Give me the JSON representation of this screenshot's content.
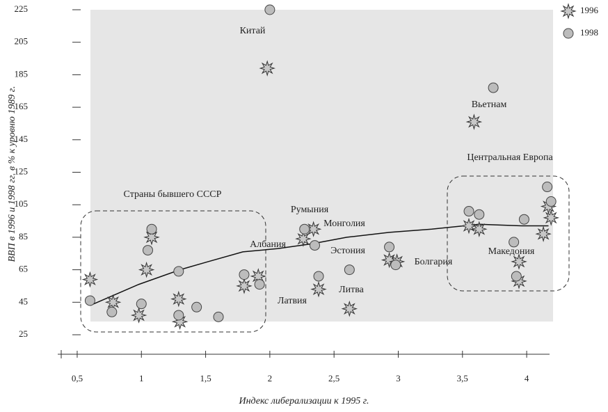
{
  "chart_data": {
    "type": "scatter",
    "ylabel": "ВВП в 1996 и 1998 гг. в % к уровню 1989 г.",
    "xlabel": "Индекс либерализации к 1995 г.",
    "xlim": [
      0.38,
      4.28
    ],
    "ylim": [
      25,
      225
    ],
    "xticks": [
      {
        "value": 0.5,
        "label": "0,5"
      },
      1,
      {
        "value": 1.5,
        "label": "1,5"
      },
      2,
      {
        "value": 2.5,
        "label": "2,5"
      },
      3,
      {
        "value": 3.5,
        "label": "3,5"
      },
      4
    ],
    "yticks": [
      25,
      45,
      65,
      85,
      105,
      125,
      145,
      165,
      185,
      205,
      225
    ],
    "series": [
      {
        "name": "1996",
        "color": "#c8c8c8",
        "marker": "star",
        "x": [
          1.98,
          3.59,
          0.6,
          0.78,
          0.98,
          1.04,
          1.08,
          1.29,
          1.3,
          1.8,
          1.91,
          2.26,
          2.34,
          2.38,
          2.62,
          2.93,
          2.99,
          3.55,
          3.63,
          3.94,
          3.94,
          4.13,
          4.17,
          4.19
        ],
        "values": [
          189,
          156,
          59,
          45,
          37,
          65,
          85,
          47,
          33,
          55,
          61,
          84,
          90,
          53,
          41,
          71,
          70,
          92,
          90,
          70,
          58,
          87,
          104,
          97
        ]
      },
      {
        "name": "1998",
        "color": "#bcbcbc",
        "marker": "circle",
        "x": [
          2.0,
          3.74,
          0.6,
          0.77,
          1.0,
          1.05,
          1.08,
          1.29,
          1.29,
          1.43,
          1.6,
          1.8,
          1.92,
          2.27,
          2.35,
          2.38,
          2.62,
          2.93,
          2.98,
          3.55,
          3.63,
          3.9,
          3.92,
          3.98,
          4.16,
          4.19
        ],
        "values": [
          225,
          177,
          46,
          39,
          44,
          77,
          90,
          64,
          37,
          42,
          36,
          62,
          56,
          90,
          80,
          61,
          65,
          79,
          68,
          101,
          99,
          82,
          61,
          96,
          116,
          107
        ]
      }
    ],
    "trend_line": {
      "x": [
        0.6,
        0.98,
        1.3,
        1.52,
        1.79,
        2.06,
        2.33,
        2.6,
        2.93,
        3.26,
        3.63,
        3.96,
        4.17
      ],
      "y": [
        43,
        56,
        65,
        70,
        76,
        78,
        81,
        85,
        88,
        90,
        93,
        92,
        92
      ]
    },
    "annotations": [
      "Китай",
      "Вьетнам",
      "Центральная Европа",
      "Страны бывшего СССР",
      "Румыния",
      "Монголия",
      "Албания",
      "Эстония",
      "Болгария",
      "Македония",
      "Латвия",
      "Литва"
    ]
  }
}
